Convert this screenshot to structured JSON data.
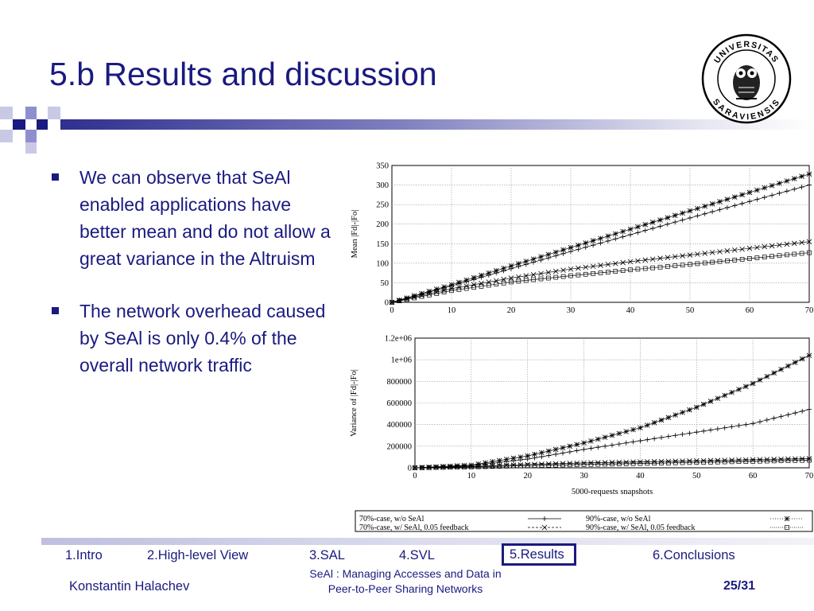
{
  "slide": {
    "title": "5.b Results and discussion",
    "bullets": [
      "We can observe that SeAl enabled applications have better mean and do not allow a great variance in the Altruism",
      "The network overhead caused by SeAl is only 0.4% of the overall network traffic"
    ]
  },
  "logo": {
    "top_text": "UNIVERSITAS",
    "bottom_text": "SARAVIENSIS"
  },
  "colors": {
    "text": "#1a1a80",
    "bar_dark": "#2f2f8f",
    "squares": [
      "#1a1a80",
      "#8f8fcf",
      "#c9c9e6"
    ]
  },
  "chart_data": [
    {
      "type": "line",
      "title": "",
      "xlabel": "",
      "ylabel": "Mean |Fd|-|Fo|",
      "xlim": [
        0,
        70
      ],
      "ylim": [
        0,
        350
      ],
      "xticks": [
        "0",
        "10",
        "20",
        "30",
        "40",
        "50",
        "60",
        "70"
      ],
      "yticks": [
        "0",
        "50",
        "100",
        "150",
        "200",
        "250",
        "300",
        "350"
      ],
      "grid": true,
      "series": [
        {
          "name": "70%-case, w/o SeAl",
          "marker": "plus",
          "x": [
            0,
            10,
            20,
            30,
            40,
            50,
            60,
            70
          ],
          "y": [
            0,
            42,
            86,
            130,
            173,
            216,
            258,
            300
          ]
        },
        {
          "name": "90%-case, w/o SeAl",
          "marker": "star",
          "x": [
            0,
            10,
            20,
            30,
            40,
            50,
            60,
            70
          ],
          "y": [
            0,
            45,
            93,
            140,
            187,
            234,
            281,
            328
          ]
        },
        {
          "name": "70%-case, w/ SeAl, 0.05 feedback",
          "marker": "x",
          "x": [
            0,
            10,
            20,
            30,
            40,
            50,
            60,
            70
          ],
          "y": [
            0,
            35,
            62,
            85,
            104,
            121,
            138,
            155
          ]
        },
        {
          "name": "90%-case, w/ SeAl, 0.05 feedback",
          "marker": "square",
          "x": [
            0,
            10,
            20,
            30,
            40,
            50,
            60,
            70
          ],
          "y": [
            0,
            30,
            52,
            68,
            83,
            97,
            112,
            127
          ]
        }
      ]
    },
    {
      "type": "line",
      "title": "",
      "xlabel": "5000-requests snapshots",
      "ylabel": "Variance of |Fd|-|Fo|",
      "xlim": [
        0,
        70
      ],
      "ylim": [
        0,
        1200000
      ],
      "xticks": [
        "0",
        "10",
        "20",
        "30",
        "40",
        "50",
        "60",
        "70"
      ],
      "yticks": [
        "0",
        "200000",
        "400000",
        "600000",
        "800000",
        "1e+06",
        "1.2e+06"
      ],
      "grid": true,
      "series": [
        {
          "name": "70%-case, w/o SeAl",
          "marker": "plus",
          "x": [
            0,
            10,
            20,
            30,
            40,
            50,
            60,
            70
          ],
          "y": [
            0,
            20000,
            80000,
            170000,
            250000,
            330000,
            410000,
            540000
          ]
        },
        {
          "name": "90%-case, w/o SeAl",
          "marker": "star",
          "x": [
            0,
            10,
            20,
            30,
            40,
            50,
            60,
            70
          ],
          "y": [
            0,
            25000,
            110000,
            230000,
            370000,
            560000,
            780000,
            1040000
          ]
        },
        {
          "name": "70%-case, w/ SeAl, 0.05 feedback",
          "marker": "x",
          "x": [
            0,
            10,
            20,
            30,
            40,
            50,
            60,
            70
          ],
          "y": [
            0,
            12000,
            30000,
            45000,
            55000,
            65000,
            75000,
            85000
          ]
        },
        {
          "name": "90%-case, w/ SeAl, 0.05 feedback",
          "marker": "square",
          "x": [
            0,
            10,
            20,
            30,
            40,
            50,
            60,
            70
          ],
          "y": [
            0,
            8000,
            20000,
            30000,
            40000,
            50000,
            60000,
            70000
          ]
        }
      ]
    }
  ],
  "legend": {
    "col1": [
      "70%-case, w/o SeAl",
      "70%-case, w/  SeAl, 0.05 feedback"
    ],
    "col2": [
      "90%-case, w/o SeAl",
      "90%-case, w/  SeAl, 0.05 feedback"
    ]
  },
  "footer": {
    "nav": [
      "1.Intro",
      "2.High-level View",
      "3.SAL",
      "4.SVL",
      "5.Results",
      "6.Conclusions"
    ],
    "author": "Konstantin Halachev",
    "center_line1": "SeAl : Managing Accesses and Data in",
    "center_line2": "Peer-to-Peer Sharing Networks",
    "page": "25/31"
  }
}
